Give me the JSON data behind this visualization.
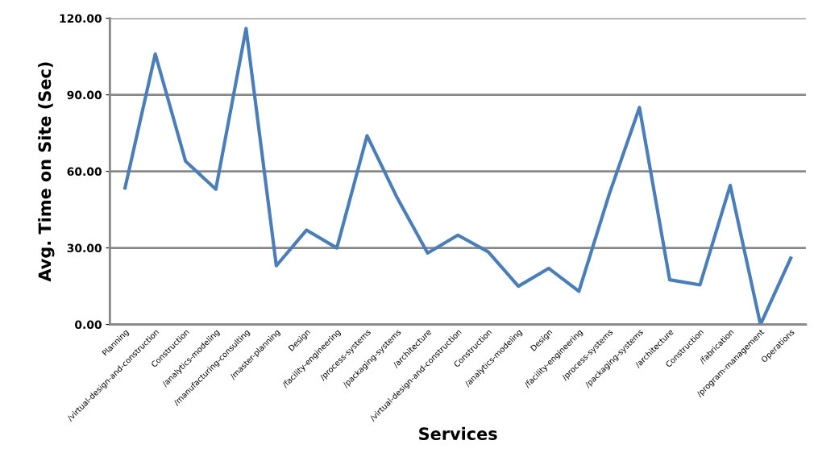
{
  "chart_data": {
    "type": "line",
    "xlabel": "Services",
    "ylabel": "Avg. Time on Site (Sec)",
    "categories": [
      "Planning",
      "/virtual-design-and-construction",
      "Construction",
      "/analytics-modeling",
      "/manufacturing-consulting",
      "/master-planning",
      "Design",
      "/facility-engineering",
      "/process-systems",
      "/packaging-systems",
      "/architecture",
      "/virtual-design-and-construction",
      "Construction",
      "/analytics-modeling",
      "Design",
      "/facility-engineering",
      "/process-systems",
      "/packaging-systems",
      "/architecture",
      "Construction",
      "/fabrication",
      "/program-management",
      "Operations"
    ],
    "series": [
      {
        "color": "#4a7ebb",
        "values": [
          53.5,
          106,
          64,
          53,
          116,
          23,
          37,
          30,
          74,
          49.5,
          28,
          35,
          28.5,
          15,
          22,
          13,
          51,
          85,
          17.5,
          15.5,
          54.5,
          0,
          26
        ]
      }
    ],
    "ylim": [
      0,
      120
    ],
    "yticks": [
      {
        "value": 0,
        "label": "0.00"
      },
      {
        "value": 30,
        "label": "30.00"
      },
      {
        "value": 60,
        "label": "60.00"
      },
      {
        "value": 90,
        "label": "90.00"
      },
      {
        "value": 120,
        "label": "120.00"
      }
    ],
    "grid": "y",
    "legend": false,
    "marker": "none",
    "line_style": "solid"
  }
}
